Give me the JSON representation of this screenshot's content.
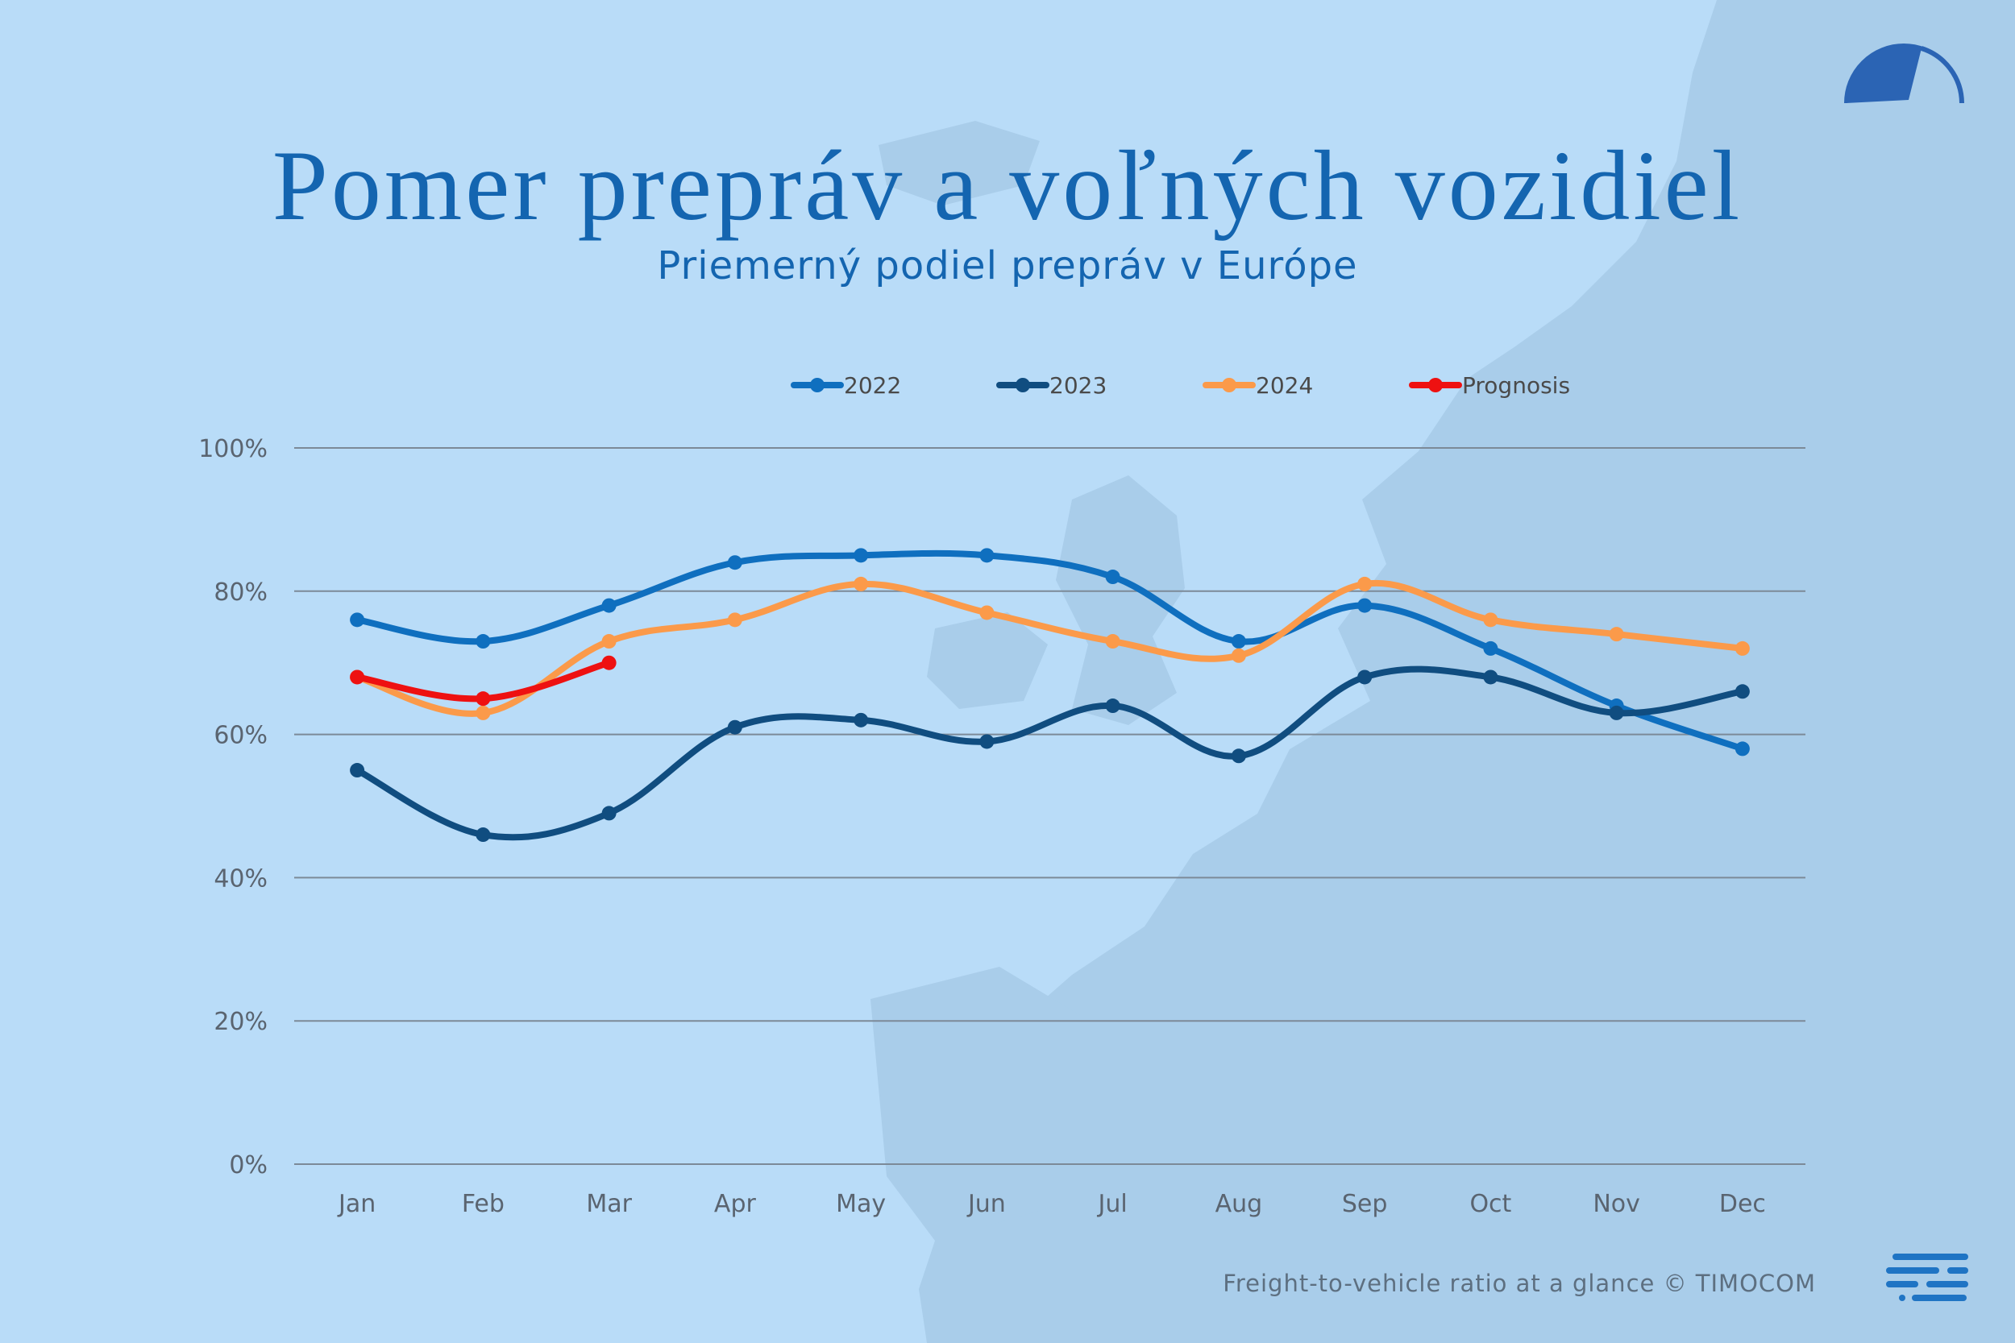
{
  "header": {
    "title": "Pomer prepráv a voľných vozidiel",
    "subtitle": "Priemerný podiel prepráv v Európe"
  },
  "footer": {
    "caption": "Freight-to-vehicle ratio at a glance © TIMOCOM"
  },
  "chart_data": {
    "type": "line",
    "title": "Pomer prepráv a voľných vozidiel",
    "subtitle": "Priemerný podiel prepráv v Európe",
    "categories": [
      "Jan",
      "Feb",
      "Mar",
      "Apr",
      "May",
      "Jun",
      "Jul",
      "Aug",
      "Sep",
      "Oct",
      "Nov",
      "Dec"
    ],
    "y_ticks": [
      "0%",
      "20%",
      "40%",
      "60%",
      "80%",
      "100%"
    ],
    "ylim": [
      0,
      100
    ],
    "grid": true,
    "legend_position": "top",
    "series": [
      {
        "name": "2022",
        "color": "#0f6fbf",
        "values": [
          76,
          73,
          78,
          84,
          85,
          85,
          82,
          73,
          78,
          72,
          64,
          58
        ]
      },
      {
        "name": "2023",
        "color": "#104d80",
        "values": [
          55,
          46,
          49,
          61,
          62,
          59,
          64,
          57,
          68,
          68,
          63,
          66
        ]
      },
      {
        "name": "2024",
        "color": "#fb9a4a",
        "values": [
          68,
          63,
          73,
          76,
          81,
          77,
          73,
          71,
          81,
          76,
          74,
          72
        ]
      },
      {
        "name": "Prognosis",
        "color": "#ee1111",
        "values": [
          68,
          65,
          70,
          null,
          null,
          null,
          null,
          null,
          null,
          null,
          null,
          null
        ]
      }
    ]
  }
}
